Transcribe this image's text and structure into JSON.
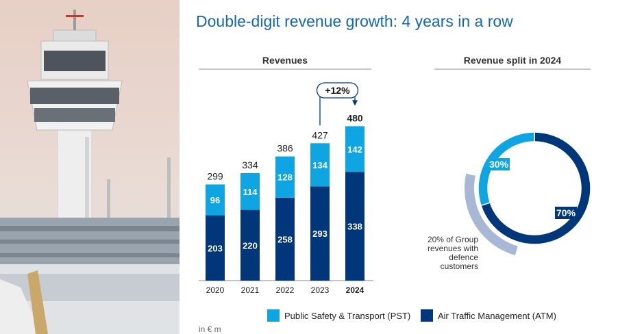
{
  "title": "Double-digit revenue growth: 4 years in a row",
  "colors": {
    "pst": "#0ea5e2",
    "atm": "#00377b",
    "defence": "#a7b7d4",
    "title": "#1466b8"
  },
  "unit": "in € m",
  "chart_data": [
    {
      "type": "bar",
      "stacked": true,
      "title": "Revenues",
      "categories": [
        "2020",
        "2021",
        "2022",
        "2023",
        "2024"
      ],
      "series": [
        {
          "name": "Air Traffic Management (ATM)",
          "values": [
            203,
            220,
            258,
            293,
            338
          ]
        },
        {
          "name": "Public Safety & Transport (PST)",
          "values": [
            96,
            114,
            128,
            134,
            142
          ]
        }
      ],
      "totals": [
        299,
        334,
        386,
        427,
        480
      ],
      "growth_annotation": "+12%",
      "highlight_category": "2024",
      "legend_placement": "bottom",
      "grid": false
    },
    {
      "type": "pie",
      "donut": true,
      "title": "Revenue split in 2024",
      "labels": [
        "Air Traffic Management (ATM)",
        "Public Safety & Transport (PST)"
      ],
      "values": [
        70,
        30
      ],
      "value_labels": [
        "70%",
        "30%"
      ],
      "annotation": "20% of Group revenues with defence customers"
    }
  ],
  "legend": {
    "pst": "Public Safety & Transport (PST)",
    "atm": "Air Traffic Management (ATM)"
  }
}
